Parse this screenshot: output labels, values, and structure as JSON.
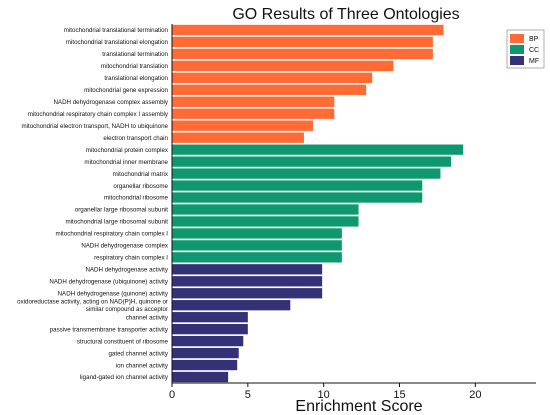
{
  "chart_data": {
    "type": "bar",
    "orientation": "horizontal",
    "title": "GO Results of Three Ontologies",
    "xlabel": "Enrichment Score",
    "ylabel": "",
    "xlim": [
      0,
      24
    ],
    "xticks": [
      "0",
      "5",
      "10",
      "15",
      "20"
    ],
    "grid": false,
    "legend_position": "top-right",
    "categories": [
      "mitochondrial translational termination",
      "mitochondrial translational elongation",
      "translational termination",
      "mitochondrial translation",
      "translational elongation",
      "mitochondrial gene expression",
      "NADH dehydrogenase complex assembly",
      "mitochondrial respiratory chain complex I assembly",
      "mitochondrial electron transport, NADH to ubiquinone",
      "electron transport chain",
      "mitochondrial protein complex",
      "mitochondrial inner membrane",
      "mitochondrial matrix",
      "organellar ribosome",
      "mitochondrial ribosome",
      "organellar large ribosomal subunit",
      "mitochondrial large ribosomal subunit",
      "mitochondrial respiratory chain complex I",
      "NADH dehydrogenase complex",
      "respiratory chain complex I",
      "NADH dehydrogenase activity",
      "NADH dehydrogenase (ubiquinone) activity",
      "NADH dehydrogenase (quinone) activity",
      "oxidoreductase activity, acting on NAD(P)H, quinone or similar compound as acceptor",
      "channel activity",
      "passive transmembrane transporter activity",
      "structural constituent of ribosome",
      "gated channel activity",
      "ion channel activity",
      "ligand-gated ion channel activity"
    ],
    "label_lines": {
      "23": [
        "oxidoreductase activity, acting on NAD(P)H, quinone or",
        "similar compound as acceptor"
      ]
    },
    "values": [
      17.9,
      17.2,
      17.2,
      14.6,
      13.2,
      12.8,
      10.7,
      10.7,
      9.3,
      8.7,
      19.2,
      18.4,
      17.7,
      16.5,
      16.5,
      12.3,
      12.3,
      11.2,
      11.2,
      11.2,
      9.9,
      9.9,
      9.9,
      7.8,
      5.0,
      5.0,
      4.7,
      4.4,
      4.3,
      3.7
    ],
    "groups": [
      "BP",
      "BP",
      "BP",
      "BP",
      "BP",
      "BP",
      "BP",
      "BP",
      "BP",
      "BP",
      "CC",
      "CC",
      "CC",
      "CC",
      "CC",
      "CC",
      "CC",
      "CC",
      "CC",
      "CC",
      "MF",
      "MF",
      "MF",
      "MF",
      "MF",
      "MF",
      "MF",
      "MF",
      "MF",
      "MF"
    ],
    "series": [
      {
        "name": "BP",
        "color": "#FF6A35"
      },
      {
        "name": "CC",
        "color": "#0F9870"
      },
      {
        "name": "MF",
        "color": "#353177"
      }
    ]
  }
}
